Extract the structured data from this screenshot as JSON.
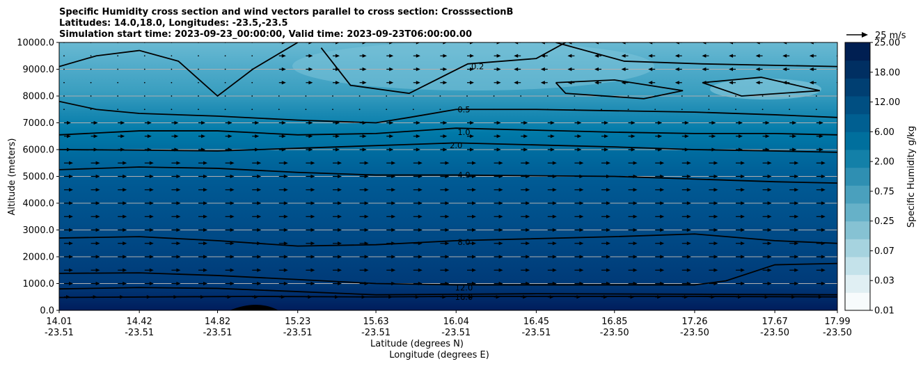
{
  "chart_data": {
    "type": "contour",
    "title_lines": [
      "Specific Humidity cross section and wind vectors parallel to cross section: CrosssectionB",
      "Latitudes: 14.0,18.0, Longitudes: -23.5,-23.5",
      "Simulation start time: 2023-09-23_00:00:00, Valid time: 2023-09-23T06:00:00.00"
    ],
    "ylabel": "Altitude (meters)",
    "xlabel_lines": [
      "Latitude (degrees N)",
      "Longitude (degrees E)"
    ],
    "ylim": [
      0,
      10000
    ],
    "yticks": [
      "0.0",
      "1000.0",
      "2000.0",
      "3000.0",
      "4000.0",
      "5000.0",
      "6000.0",
      "7000.0",
      "8000.0",
      "9000.0",
      "10000.0"
    ],
    "xticks_lat": [
      "14.01",
      "14.42",
      "14.82",
      "15.23",
      "15.63",
      "16.04",
      "16.45",
      "16.85",
      "17.26",
      "17.67",
      "17.99"
    ],
    "xticks_lon": [
      "-23.51",
      "-23.51",
      "-23.51",
      "-23.51",
      "-23.51",
      "-23.51",
      "-23.51",
      "-23.50",
      "-23.50",
      "-23.50",
      "-23.50"
    ],
    "grid": "horizontal",
    "colorbar": {
      "label": "Specific Humidity g/kg",
      "levels": [
        "0.01",
        "0.03",
        "0.07",
        "0.25",
        "0.75",
        "2.00",
        "6.00",
        "12.00",
        "18.00",
        "25.00"
      ],
      "colors": [
        "#f7fbfc",
        "#e0eff3",
        "#c4e2ea",
        "#a6d3df",
        "#86c2d3",
        "#66b1c8",
        "#4aa0bd",
        "#2f8fb2",
        "#1380a8",
        "#006f9d",
        "#005f91",
        "#004f82",
        "#003f72",
        "#002f62",
        "#001f52"
      ]
    },
    "quiver_key": "25 m/s",
    "contour_labels": [
      "0.2",
      "0.5",
      "1.0",
      "2.0",
      "4.0",
      "8.0",
      "12.0",
      "16.0"
    ],
    "contours": [
      {
        "level": "16.0",
        "color": "#000",
        "points": [
          [
            14.01,
            480
          ],
          [
            15.0,
            520
          ],
          [
            15.63,
            500
          ],
          [
            16.04,
            520
          ],
          [
            17.26,
            520
          ],
          [
            17.99,
            500
          ]
        ]
      },
      {
        "level": "12.0",
        "color": "#000",
        "points": [
          [
            14.01,
            800
          ],
          [
            14.42,
            850
          ],
          [
            14.82,
            820
          ],
          [
            15.23,
            700
          ],
          [
            15.63,
            580
          ],
          [
            16.04,
            600
          ],
          [
            16.45,
            620
          ],
          [
            17.26,
            600
          ],
          [
            17.99,
            580
          ]
        ]
      },
      {
        "level": "8.0",
        "color": "#000",
        "points": [
          [
            14.01,
            1380
          ],
          [
            14.42,
            1400
          ],
          [
            14.82,
            1300
          ],
          [
            15.23,
            1150
          ],
          [
            15.63,
            1000
          ],
          [
            16.04,
            950
          ],
          [
            16.85,
            950
          ],
          [
            17.26,
            950
          ],
          [
            17.42,
            1100
          ],
          [
            17.67,
            1700
          ],
          [
            17.99,
            1750
          ]
        ]
      },
      {
        "level": "8.0b",
        "color": "#000",
        "points": [
          [
            14.01,
            2700
          ],
          [
            14.42,
            2750
          ],
          [
            14.82,
            2600
          ],
          [
            15.23,
            2400
          ],
          [
            15.63,
            2450
          ],
          [
            16.04,
            2600
          ],
          [
            16.85,
            2750
          ],
          [
            17.26,
            2850
          ],
          [
            17.67,
            2600
          ],
          [
            17.99,
            2500
          ]
        ]
      },
      {
        "level": "4.0",
        "color": "#000",
        "points": [
          [
            14.01,
            5250
          ],
          [
            14.42,
            5350
          ],
          [
            14.82,
            5300
          ],
          [
            15.23,
            5150
          ],
          [
            15.63,
            5050
          ],
          [
            16.04,
            5050
          ],
          [
            16.85,
            5000
          ],
          [
            17.26,
            4900
          ],
          [
            17.67,
            4800
          ],
          [
            17.99,
            4750
          ]
        ]
      },
      {
        "level": "2.0",
        "color": "#000",
        "points": [
          [
            14.01,
            6000
          ],
          [
            14.42,
            5980
          ],
          [
            14.82,
            5950
          ],
          [
            15.23,
            6050
          ],
          [
            15.63,
            6150
          ],
          [
            16.04,
            6250
          ],
          [
            16.85,
            6100
          ],
          [
            17.26,
            6000
          ],
          [
            17.67,
            5950
          ],
          [
            17.99,
            5900
          ]
        ]
      },
      {
        "level": "1.0",
        "color": "#000",
        "points": [
          [
            14.01,
            6550
          ],
          [
            14.42,
            6700
          ],
          [
            14.82,
            6700
          ],
          [
            15.23,
            6550
          ],
          [
            15.63,
            6600
          ],
          [
            16.04,
            6800
          ],
          [
            16.85,
            6650
          ],
          [
            17.26,
            6600
          ],
          [
            17.67,
            6600
          ],
          [
            17.99,
            6550
          ]
        ]
      },
      {
        "level": "0.5",
        "color": "#000",
        "points": [
          [
            14.01,
            7800
          ],
          [
            14.2,
            7500
          ],
          [
            14.42,
            7350
          ],
          [
            14.82,
            7250
          ],
          [
            15.23,
            7100
          ],
          [
            15.63,
            7000
          ],
          [
            15.8,
            7200
          ],
          [
            16.04,
            7500
          ],
          [
            16.45,
            7500
          ],
          [
            16.85,
            7450
          ],
          [
            17.26,
            7400
          ],
          [
            17.67,
            7300
          ],
          [
            17.99,
            7200
          ]
        ]
      },
      {
        "level": "0.2",
        "color": "#000",
        "points": [
          [
            14.01,
            9100
          ],
          [
            14.2,
            9500
          ],
          [
            14.42,
            9700
          ],
          [
            14.62,
            9300
          ],
          [
            14.82,
            8000
          ],
          [
            15.0,
            9000
          ],
          [
            15.23,
            10000
          ]
        ]
      },
      {
        "level": "0.2b",
        "color": "#000",
        "points": [
          [
            15.35,
            9800
          ],
          [
            15.5,
            8400
          ],
          [
            15.8,
            8100
          ],
          [
            16.1,
            9200
          ],
          [
            16.45,
            9400
          ],
          [
            16.6,
            10000
          ]
        ]
      },
      {
        "level": "0.5b",
        "color": "#000",
        "points": [
          [
            16.55,
            8500
          ],
          [
            16.85,
            8600
          ],
          [
            17.2,
            8200
          ],
          [
            17.0,
            7900
          ],
          [
            16.6,
            8100
          ],
          [
            16.55,
            8500
          ]
        ]
      },
      {
        "level": "0.2c",
        "color": "#000",
        "points": [
          [
            17.3,
            8500
          ],
          [
            17.6,
            8700
          ],
          [
            17.9,
            8200
          ],
          [
            17.5,
            8000
          ],
          [
            17.3,
            8500
          ]
        ]
      },
      {
        "level": "0.5c",
        "color": "#000",
        "points": [
          [
            16.55,
            10000
          ],
          [
            16.9,
            9300
          ],
          [
            17.3,
            9200
          ],
          [
            17.99,
            9100
          ]
        ]
      }
    ]
  }
}
